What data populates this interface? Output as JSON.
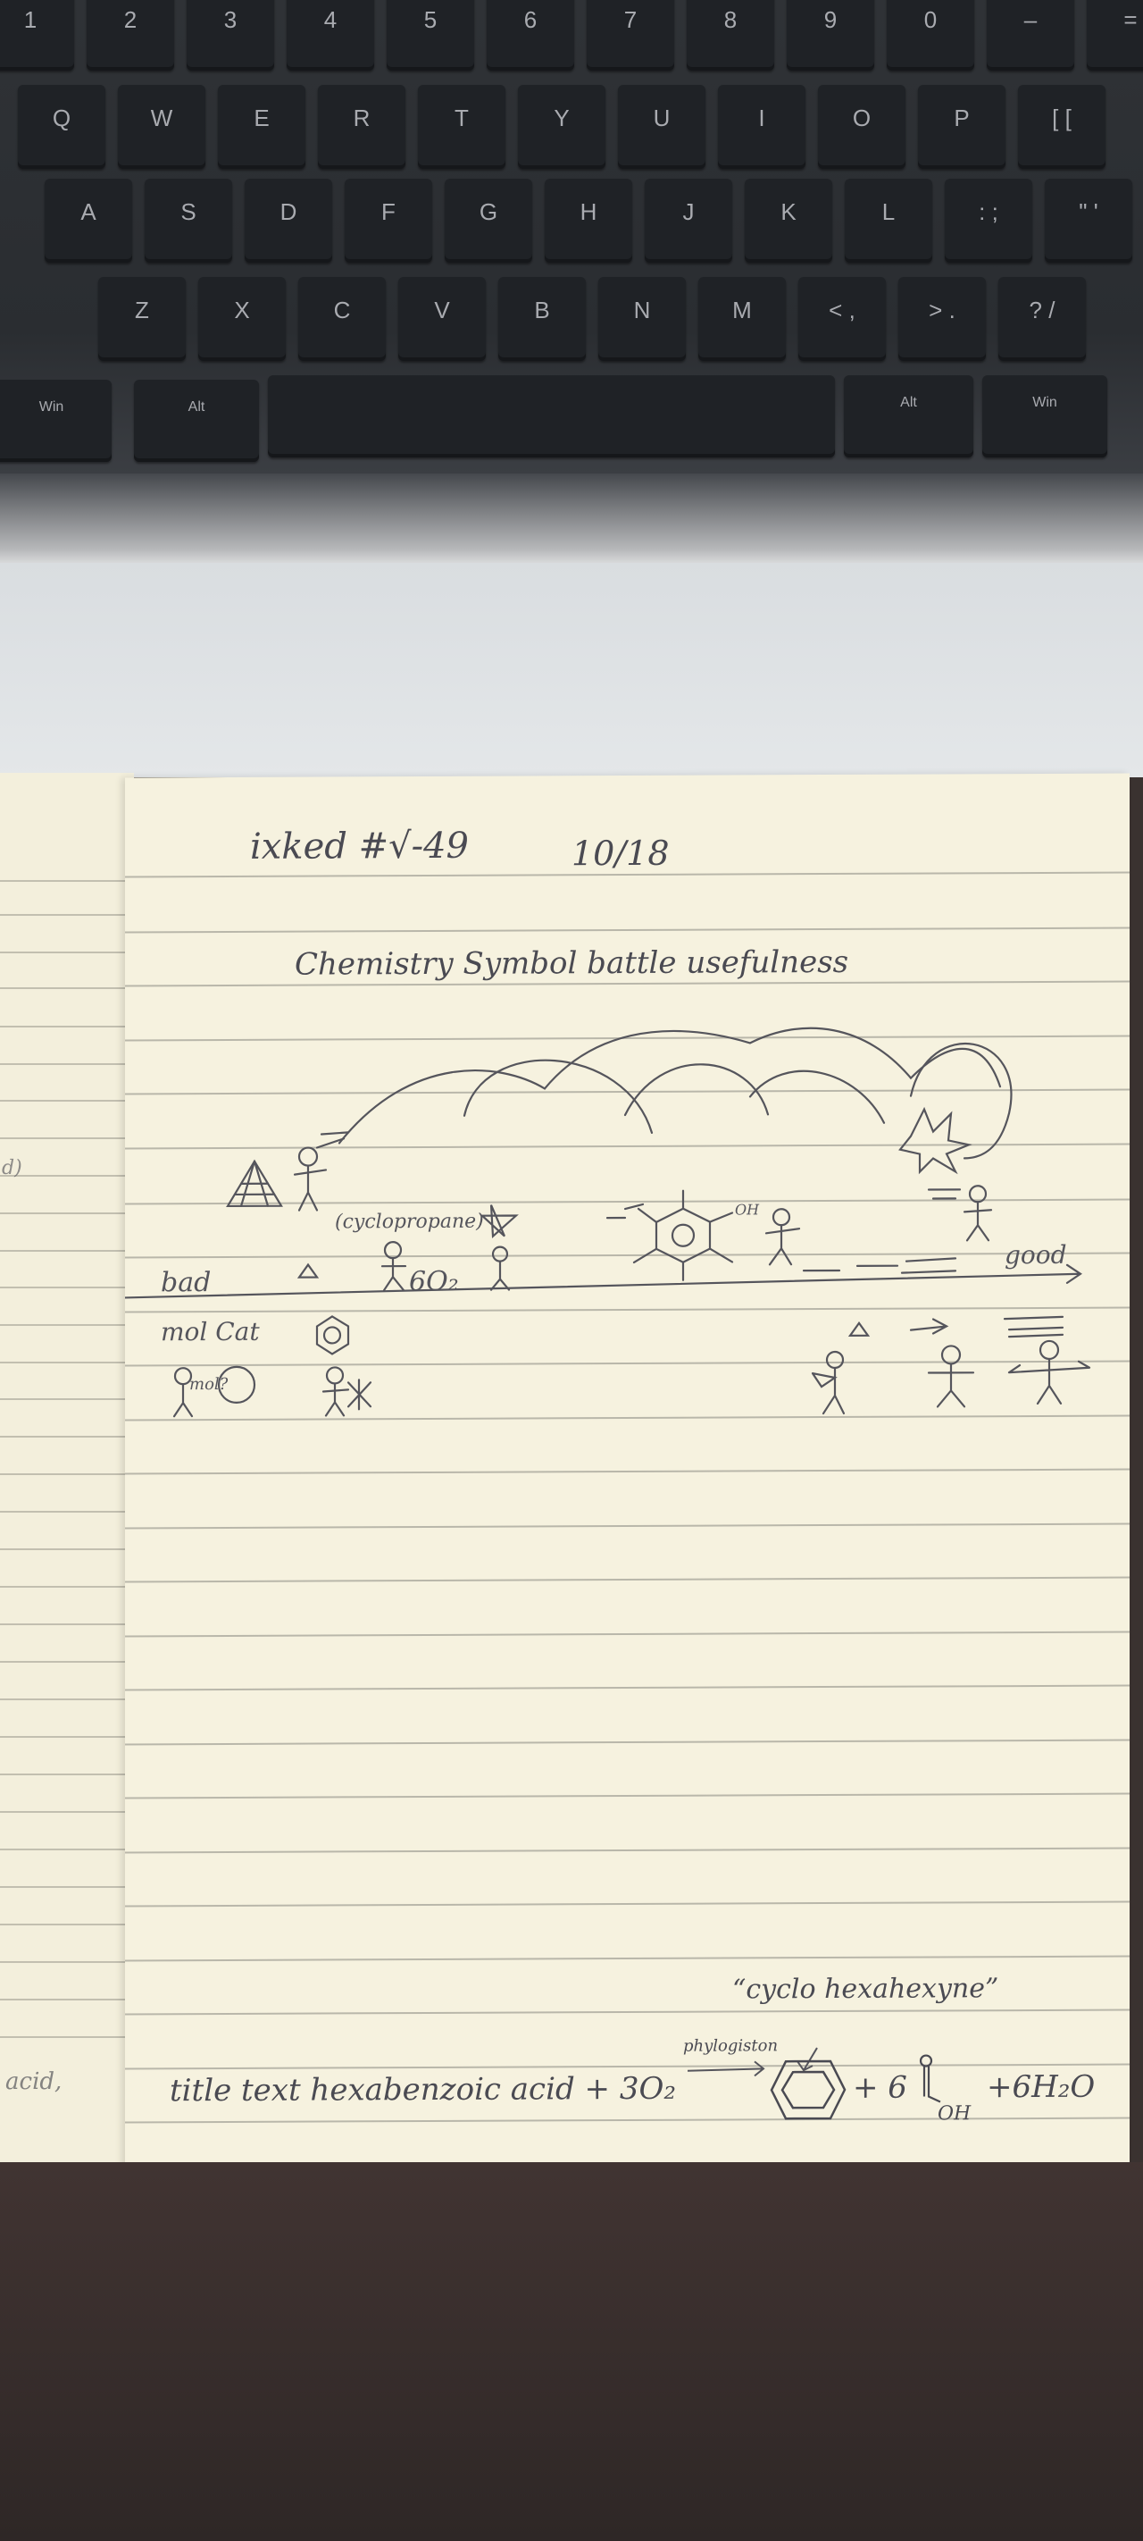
{
  "keyboard": {
    "rows": [
      [
        "1",
        "2",
        "3",
        "4",
        "5",
        "6",
        "7",
        "8",
        "9",
        "0",
        "–",
        "="
      ],
      [
        "Q",
        "W",
        "E",
        "R",
        "T",
        "Y",
        "U",
        "I",
        "O",
        "P",
        "[ ["
      ],
      [
        "A",
        "S",
        "D",
        "F",
        "G",
        "H",
        "J",
        "K",
        "L",
        ": ;",
        "\" '"
      ],
      [
        "Z",
        "X",
        "C",
        "V",
        "B",
        "N",
        "M",
        "< ,",
        "> .",
        "? /"
      ]
    ],
    "bottom": {
      "win_left": "Win",
      "alt_left": "Alt",
      "alt_right": "Alt",
      "win_right": "Win"
    }
  },
  "notebook": {
    "header": {
      "title": "ixked #√-49",
      "date": "10/18"
    },
    "heading": "Chemistry Symbol battle usefulness",
    "label_cyclopropane": "(cyclopropane)",
    "label_6o2": "6O₂",
    "label_bad": "bad",
    "label_good": "good",
    "label_mol_cat": "mol Cat",
    "label_mol": "mol?",
    "label_oh": "OH",
    "quote": "“cyclo hexahexyne”",
    "phlogiston": "phylogiston",
    "equation_left": "title text hexabenzoic acid + 3O₂",
    "equation_right_1": "+ 6",
    "equation_right_oh": "OH",
    "equation_right_2": "+6H₂O",
    "left_page_text_1": "acid,",
    "left_page_text_2": "d)"
  }
}
